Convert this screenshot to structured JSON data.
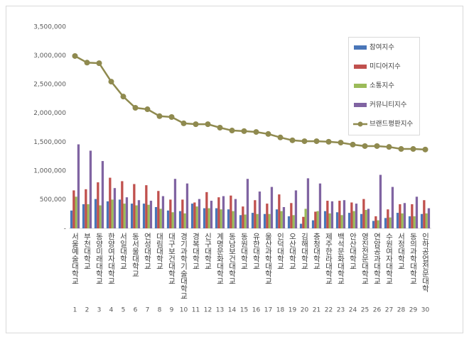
{
  "chart_data": {
    "type": "bar-line",
    "categories": [
      "서울예술대학교",
      "부천대학교",
      "동양미래대학교",
      "한양여자대학교",
      "서일대학교",
      "동서울대학교",
      "연성대학교",
      "대림대학교",
      "대구보건대학교",
      "경기과학기술대학교",
      "경복대학교",
      "신구대학교",
      "계명문화대학교",
      "동남보건대학교",
      "동원대학교",
      "유한대학교",
      "울산과학대학교",
      "인덕대학교",
      "오산대학교",
      "김해대학교",
      "충청대학교",
      "제주한라대학교",
      "백석문화대학교",
      "안산대학교",
      "영진전문대학교",
      "연암공과대학교",
      "수원여자대학교",
      "서정대학교",
      "동의과학대학교",
      "인하공업전문대학"
    ],
    "ranks": [
      1,
      2,
      3,
      4,
      5,
      6,
      7,
      8,
      9,
      10,
      11,
      12,
      13,
      14,
      15,
      16,
      17,
      18,
      19,
      20,
      21,
      22,
      23,
      24,
      25,
      26,
      27,
      28,
      29,
      30
    ],
    "series": [
      {
        "name": "참여지수",
        "color": "#4a76b8",
        "kind": "bar",
        "values": [
          310000,
          420000,
          510000,
          470000,
          500000,
          430000,
          430000,
          370000,
          310000,
          300000,
          430000,
          350000,
          350000,
          330000,
          230000,
          270000,
          250000,
          330000,
          210000,
          80000,
          140000,
          300000,
          280000,
          270000,
          250000,
          130000,
          180000,
          270000,
          210000,
          250000
        ]
      },
      {
        "name": "미디어지수",
        "color": "#c0504d",
        "kind": "bar",
        "values": [
          660000,
          680000,
          800000,
          880000,
          820000,
          770000,
          750000,
          650000,
          500000,
          500000,
          450000,
          630000,
          540000,
          570000,
          380000,
          490000,
          430000,
          590000,
          440000,
          200000,
          290000,
          480000,
          480000,
          450000,
          510000,
          210000,
          330000,
          420000,
          420000,
          490000
        ]
      },
      {
        "name": "소통지수",
        "color": "#9bbb59",
        "kind": "bar",
        "values": [
          550000,
          420000,
          400000,
          500000,
          430000,
          400000,
          410000,
          340000,
          280000,
          260000,
          380000,
          350000,
          330000,
          300000,
          240000,
          250000,
          250000,
          300000,
          230000,
          340000,
          300000,
          260000,
          230000,
          300000,
          320000,
          140000,
          190000,
          260000,
          210000,
          260000
        ]
      },
      {
        "name": "커뮤니티지수",
        "color": "#8064a2",
        "kind": "bar",
        "values": [
          1460000,
          1350000,
          1170000,
          700000,
          540000,
          490000,
          480000,
          560000,
          860000,
          780000,
          510000,
          480000,
          560000,
          510000,
          860000,
          640000,
          720000,
          370000,
          660000,
          870000,
          780000,
          470000,
          490000,
          430000,
          340000,
          930000,
          720000,
          440000,
          550000,
          350000
        ]
      },
      {
        "name": "브랜드평판지수",
        "color": "#8f8a4f",
        "kind": "line",
        "values": [
          2995000,
          2880000,
          2870000,
          2550000,
          2290000,
          2095000,
          2070000,
          1950000,
          1935000,
          1825000,
          1810000,
          1810000,
          1750000,
          1700000,
          1690000,
          1675000,
          1640000,
          1580000,
          1530000,
          1515000,
          1515000,
          1505000,
          1490000,
          1455000,
          1430000,
          1430000,
          1415000,
          1380000,
          1380000,
          1370000
        ]
      }
    ],
    "ylim": [
      0,
      3500000
    ],
    "yticks": [
      {
        "value": 0,
        "label": "-"
      },
      {
        "value": 500000,
        "label": "500,000"
      },
      {
        "value": 1000000,
        "label": "1,000,000"
      },
      {
        "value": 1500000,
        "label": "1,500,000"
      },
      {
        "value": 2000000,
        "label": "2,000,000"
      },
      {
        "value": 2500000,
        "label": "2,500,000"
      },
      {
        "value": 3000000,
        "label": "3,000,000"
      },
      {
        "value": 3500000,
        "label": "3,500,000"
      }
    ],
    "grid": false,
    "legend": "top-right"
  }
}
